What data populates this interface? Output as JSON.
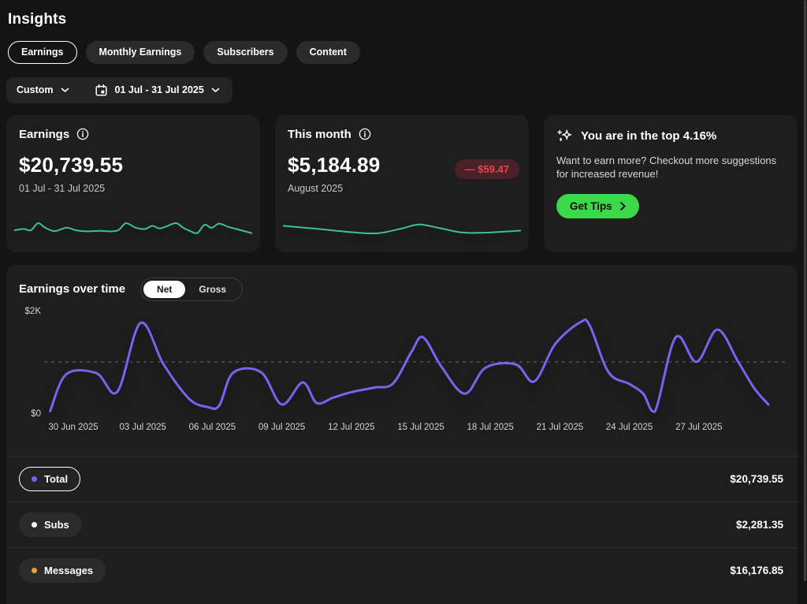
{
  "page": {
    "title": "Insights"
  },
  "tabs": [
    {
      "label": "Earnings",
      "active": true
    },
    {
      "label": "Monthly Earnings",
      "active": false
    },
    {
      "label": "Subscribers",
      "active": false
    },
    {
      "label": "Content",
      "active": false
    }
  ],
  "filter": {
    "preset": "Custom",
    "date_range": "01 Jul - 31 Jul 2025"
  },
  "cards": {
    "earnings": {
      "title": "Earnings",
      "amount": "$20,739.55",
      "period": "01 Jul - 31 Jul 2025"
    },
    "this_month": {
      "title": "This month",
      "amount": "$5,184.89",
      "period": "August 2025",
      "delta": "— $59.47"
    },
    "tips": {
      "title": "You are in the top 4.16%",
      "body": "Want to earn more? Checkout more suggestions for increased revenue!",
      "button_label": "Get Tips"
    }
  },
  "chart": {
    "title": "Earnings over time",
    "toggle_net": "Net",
    "toggle_gross": "Gross",
    "selected": "Net"
  },
  "chart_data": {
    "type": "line",
    "title": "Earnings over time (Net)",
    "unit": "USD",
    "ylim": [
      0,
      2000
    ],
    "y_ticks": [
      {
        "label": "$2K",
        "value": 2000
      },
      {
        "label": "$0",
        "value": 0
      }
    ],
    "gridline_value": 1000,
    "grid_dashed": true,
    "x_ticks": [
      {
        "day": 0,
        "label": "30 Jun 2025"
      },
      {
        "day": 3,
        "label": "03 Jul 2025"
      },
      {
        "day": 6,
        "label": "06 Jul 2025"
      },
      {
        "day": 9,
        "label": "09 Jul 2025"
      },
      {
        "day": 12,
        "label": "12 Jul 2025"
      },
      {
        "day": 15,
        "label": "15 Jul 2025"
      },
      {
        "day": 18,
        "label": "18 Jul 2025"
      },
      {
        "day": 21,
        "label": "21 Jul 2025"
      },
      {
        "day": 24,
        "label": "24 Jul 2025"
      },
      {
        "day": 27,
        "label": "27 Jul 2025"
      }
    ],
    "series": [
      {
        "name": "Total",
        "color": "#7a63f1",
        "points": [
          [
            -1.0,
            40
          ],
          [
            -0.3,
            760
          ],
          [
            1.0,
            780
          ],
          [
            1.9,
            420
          ],
          [
            2.9,
            1760
          ],
          [
            3.9,
            950
          ],
          [
            5.0,
            280
          ],
          [
            5.8,
            120
          ],
          [
            6.3,
            150
          ],
          [
            6.9,
            790
          ],
          [
            8.1,
            800
          ],
          [
            9.0,
            170
          ],
          [
            9.9,
            600
          ],
          [
            10.5,
            200
          ],
          [
            11.2,
            300
          ],
          [
            12.0,
            410
          ],
          [
            13.0,
            500
          ],
          [
            13.8,
            580
          ],
          [
            14.6,
            1200
          ],
          [
            15.1,
            1480
          ],
          [
            15.9,
            900
          ],
          [
            16.9,
            380
          ],
          [
            17.8,
            890
          ],
          [
            19.1,
            950
          ],
          [
            19.9,
            620
          ],
          [
            20.8,
            1350
          ],
          [
            21.9,
            1780
          ],
          [
            22.3,
            1700
          ],
          [
            23.1,
            800
          ],
          [
            24.0,
            570
          ],
          [
            24.6,
            380
          ],
          [
            25.1,
            30
          ],
          [
            26.0,
            1480
          ],
          [
            26.9,
            1000
          ],
          [
            27.8,
            1630
          ],
          [
            28.7,
            1000
          ],
          [
            29.4,
            480
          ],
          [
            30.0,
            170
          ]
        ]
      }
    ],
    "sparklines": {
      "earnings": {
        "color": "#3fbf8f",
        "points": [
          [
            0,
            45
          ],
          [
            4,
            50
          ],
          [
            7,
            45
          ],
          [
            10,
            72
          ],
          [
            13,
            55
          ],
          [
            17,
            42
          ],
          [
            22,
            55
          ],
          [
            26,
            45
          ],
          [
            30,
            41
          ],
          [
            36,
            43
          ],
          [
            41,
            41
          ],
          [
            44,
            47
          ],
          [
            47,
            72
          ],
          [
            51,
            55
          ],
          [
            55,
            50
          ],
          [
            58,
            62
          ],
          [
            61,
            52
          ],
          [
            64,
            60
          ],
          [
            68,
            72
          ],
          [
            71,
            55
          ],
          [
            74,
            42
          ],
          [
            77,
            35
          ],
          [
            80,
            66
          ],
          [
            83,
            54
          ],
          [
            86,
            70
          ],
          [
            90,
            58
          ],
          [
            95,
            46
          ],
          [
            100,
            34
          ]
        ]
      },
      "this_month": {
        "color": "#3fbf8f",
        "points": [
          [
            0,
            62
          ],
          [
            15,
            50
          ],
          [
            30,
            37
          ],
          [
            40,
            34
          ],
          [
            50,
            52
          ],
          [
            57,
            67
          ],
          [
            65,
            55
          ],
          [
            75,
            37
          ],
          [
            85,
            36
          ],
          [
            100,
            44
          ]
        ]
      }
    }
  },
  "legend": [
    {
      "label": "Total",
      "value": "$20,739.55",
      "dot_color": "#7a63f1",
      "selected": true
    },
    {
      "label": "Subs",
      "value": "$2,281.35",
      "dot_color": "#ffffff",
      "selected": false
    },
    {
      "label": "Messages",
      "value": "$16,176.85",
      "dot_color": "#e8a33d",
      "selected": false
    }
  ],
  "colors": {
    "page_bg": "#141414",
    "card_bg": "#1e1e1e",
    "accent_green_button": "#3bd849",
    "spark_green": "#3fbf8f",
    "line_purple": "#7a63f1",
    "delta_bg": "#4a2128",
    "delta_text": "#e5484d"
  }
}
